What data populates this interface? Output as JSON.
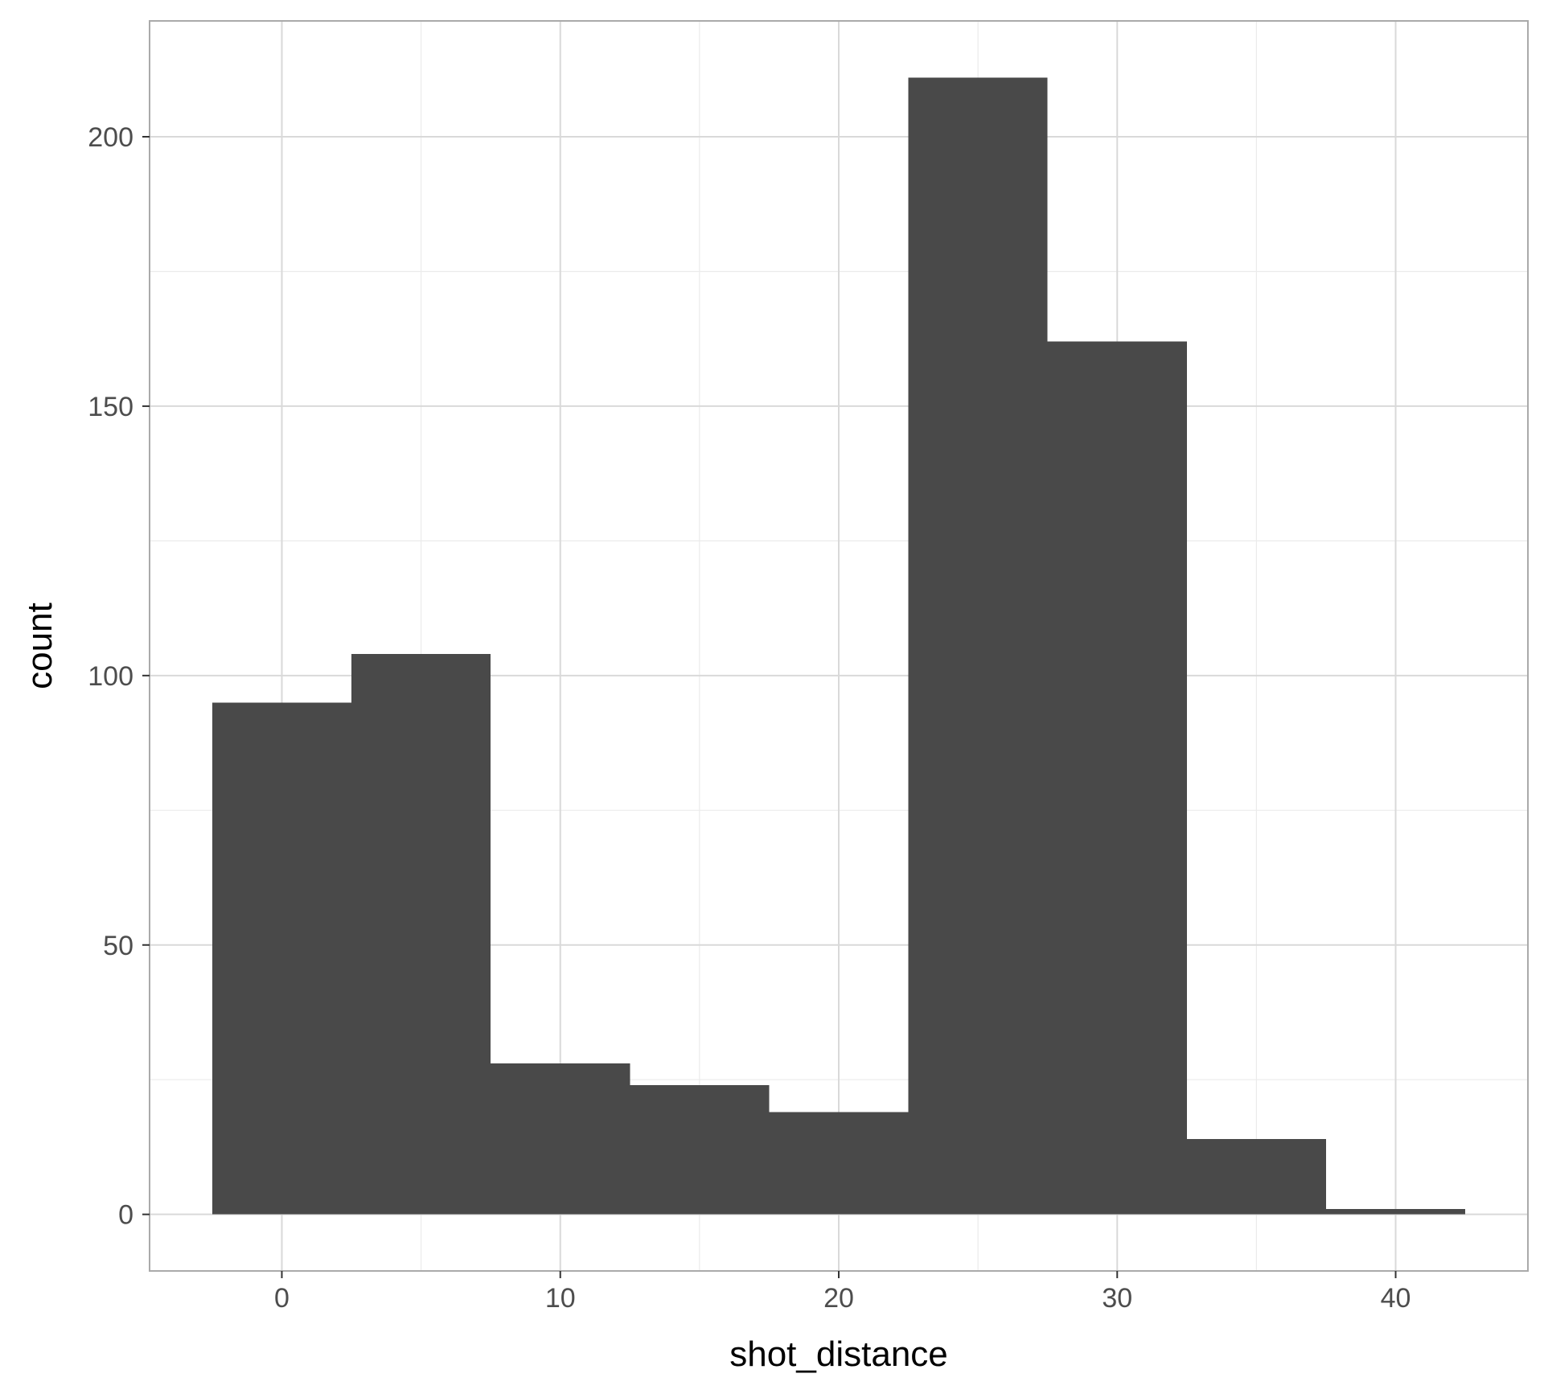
{
  "chart_data": {
    "type": "bar",
    "title": "",
    "xlabel": "shot_distance",
    "ylabel": "count",
    "bins": [
      {
        "x_start": -2.5,
        "x_end": 2.5,
        "count": 95
      },
      {
        "x_start": 2.5,
        "x_end": 7.5,
        "count": 104
      },
      {
        "x_start": 7.5,
        "x_end": 12.5,
        "count": 28
      },
      {
        "x_start": 12.5,
        "x_end": 17.5,
        "count": 24
      },
      {
        "x_start": 17.5,
        "x_end": 22.5,
        "count": 19
      },
      {
        "x_start": 22.5,
        "x_end": 27.5,
        "count": 211
      },
      {
        "x_start": 27.5,
        "x_end": 32.5,
        "count": 162
      },
      {
        "x_start": 32.5,
        "x_end": 37.5,
        "count": 14
      },
      {
        "x_start": 37.5,
        "x_end": 42.5,
        "count": 1
      }
    ],
    "x_ticks": [
      0,
      10,
      20,
      30,
      40
    ],
    "y_ticks": [
      0,
      50,
      100,
      150,
      200
    ],
    "xlim": [
      -4.75,
      44.75
    ],
    "ylim": [
      -10.5,
      221.5
    ],
    "grid": true,
    "colors": {
      "bar": "#494949",
      "grid_major": "#d9d9d9",
      "grid_minor": "#ebebeb",
      "panel_border": "#aaaaaa",
      "tick_label": "#4d4d4d",
      "axis_title": "#000000"
    }
  }
}
